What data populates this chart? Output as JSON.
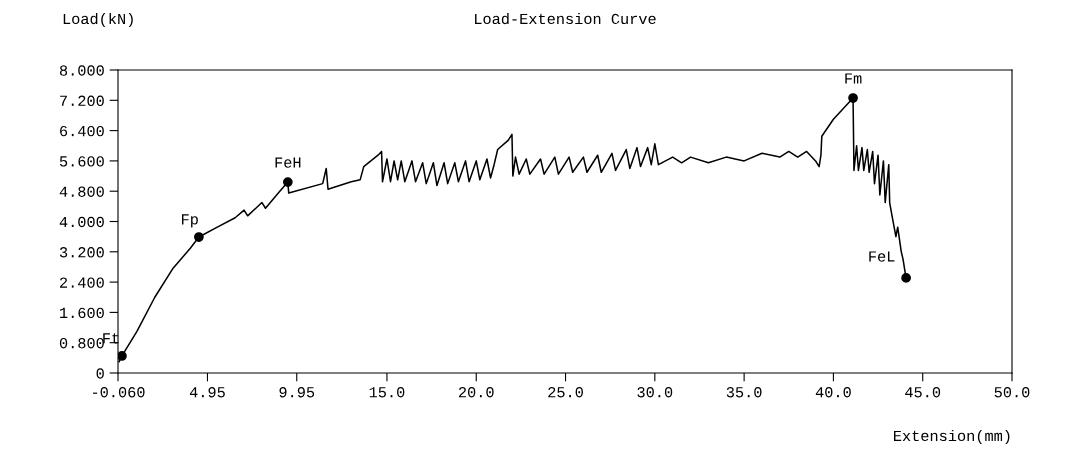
{
  "chart_data": {
    "type": "line",
    "title": "Load-Extension Curve",
    "xlabel": "Extension(mm)",
    "ylabel": "Load(kN)",
    "xlim": [
      -0.06,
      50.0
    ],
    "ylim": [
      0,
      8.0
    ],
    "xticks": [
      {
        "value": -0.06,
        "label": "-0.060"
      },
      4.95,
      9.95,
      {
        "value": 15.0,
        "label": "15.0"
      },
      {
        "value": 20.0,
        "label": "20.0"
      },
      {
        "value": 25.0,
        "label": "25.0"
      },
      {
        "value": 30.0,
        "label": "30.0"
      },
      {
        "value": 35.0,
        "label": "35.0"
      },
      {
        "value": 40.0,
        "label": "40.0"
      },
      {
        "value": 45.0,
        "label": "45.0"
      },
      {
        "value": 50.0,
        "label": "50.0"
      }
    ],
    "yticks": [
      0,
      {
        "value": 0.8,
        "label": "0.800"
      },
      {
        "value": 1.6,
        "label": "1.600"
      },
      {
        "value": 2.4,
        "label": "2.400"
      },
      {
        "value": 3.2,
        "label": "3.200"
      },
      {
        "value": 4.0,
        "label": "4.000"
      },
      {
        "value": 4.8,
        "label": "4.800"
      },
      {
        "value": 5.6,
        "label": "5.600"
      },
      {
        "value": 6.4,
        "label": "6.400"
      },
      {
        "value": 7.2,
        "label": "7.200"
      },
      {
        "value": 8.0,
        "label": "8.000"
      }
    ],
    "grid": false,
    "series": [
      {
        "color": "#000000",
        "marker": "none",
        "line_style": "solid",
        "x": [
          0.0,
          0.16,
          1.0,
          2.0,
          3.0,
          4.0,
          4.47,
          5.5,
          6.5,
          7.0,
          7.2,
          8.0,
          8.2,
          9.0,
          9.45,
          9.5,
          11.4,
          11.6,
          11.7,
          12.0,
          13.0,
          13.5,
          13.7,
          14.5,
          14.7,
          14.75,
          15.0,
          15.2,
          15.4,
          15.6,
          15.8,
          16.0,
          16.4,
          16.6,
          17.0,
          17.2,
          17.6,
          17.8,
          18.2,
          18.4,
          18.8,
          19.0,
          19.4,
          19.6,
          20.0,
          20.2,
          20.6,
          20.8,
          21.0,
          21.2,
          21.8,
          22.0,
          22.05,
          22.2,
          22.4,
          22.8,
          23.0,
          23.6,
          23.8,
          24.4,
          24.6,
          25.2,
          25.4,
          26.0,
          26.2,
          26.8,
          27.0,
          27.6,
          27.8,
          28.4,
          28.6,
          29.0,
          29.2,
          29.6,
          29.8,
          30.0,
          30.2,
          31.0,
          31.5,
          32.0,
          33.0,
          34.0,
          35.0,
          36.0,
          37.0,
          37.5,
          38.0,
          38.5,
          39.0,
          39.2,
          39.3,
          39.35,
          40.0,
          41.1,
          41.15,
          41.3,
          41.4,
          41.6,
          41.7,
          41.9,
          42.0,
          42.2,
          42.3,
          42.5,
          42.6,
          42.8,
          42.9,
          43.1,
          43.15,
          43.3,
          43.5,
          43.6,
          43.8,
          43.9,
          44.0,
          44.07
        ],
        "values": [
          0.3,
          0.45,
          1.1,
          2.0,
          2.75,
          3.3,
          3.59,
          3.85,
          4.1,
          4.3,
          4.15,
          4.5,
          4.35,
          4.8,
          5.04,
          4.75,
          5.0,
          5.4,
          4.85,
          4.9,
          5.05,
          5.1,
          5.45,
          5.75,
          5.85,
          5.05,
          5.65,
          5.05,
          5.6,
          5.1,
          5.6,
          5.05,
          5.6,
          5.05,
          5.55,
          5.0,
          5.55,
          4.95,
          5.55,
          5.0,
          5.55,
          5.05,
          5.6,
          5.05,
          5.6,
          5.1,
          5.65,
          5.15,
          5.5,
          5.9,
          6.15,
          6.3,
          5.2,
          5.7,
          5.25,
          5.65,
          5.25,
          5.65,
          5.25,
          5.7,
          5.25,
          5.7,
          5.3,
          5.7,
          5.3,
          5.75,
          5.3,
          5.8,
          5.35,
          5.9,
          5.4,
          5.95,
          5.45,
          5.95,
          5.5,
          6.05,
          5.5,
          5.7,
          5.55,
          5.7,
          5.55,
          5.7,
          5.6,
          5.8,
          5.7,
          5.85,
          5.7,
          5.85,
          5.6,
          5.45,
          5.75,
          6.25,
          6.7,
          7.26,
          5.35,
          6.0,
          5.35,
          5.95,
          5.35,
          5.9,
          5.3,
          5.85,
          5.0,
          5.75,
          4.7,
          5.6,
          4.5,
          5.5,
          4.5,
          4.1,
          3.6,
          3.85,
          3.2,
          3.0,
          2.7,
          2.51
        ]
      },
      {
        "type": "scatter",
        "color": "#000000",
        "marker": "circle",
        "x": [
          0.16,
          4.47,
          9.45,
          41.1,
          44.07
        ],
        "values": [
          0.45,
          3.59,
          5.04,
          7.26,
          2.51
        ]
      }
    ],
    "annotations": [
      {
        "text": "Ft",
        "x": 0.16,
        "y": 0.45
      },
      {
        "text": "Fp",
        "x": 4.47,
        "y": 3.59
      },
      {
        "text": "FeH",
        "x": 9.45,
        "y": 5.04
      },
      {
        "text": "Fm",
        "x": 41.1,
        "y": 7.26
      },
      {
        "text": "FeL",
        "x": 44.07,
        "y": 2.51
      }
    ]
  }
}
